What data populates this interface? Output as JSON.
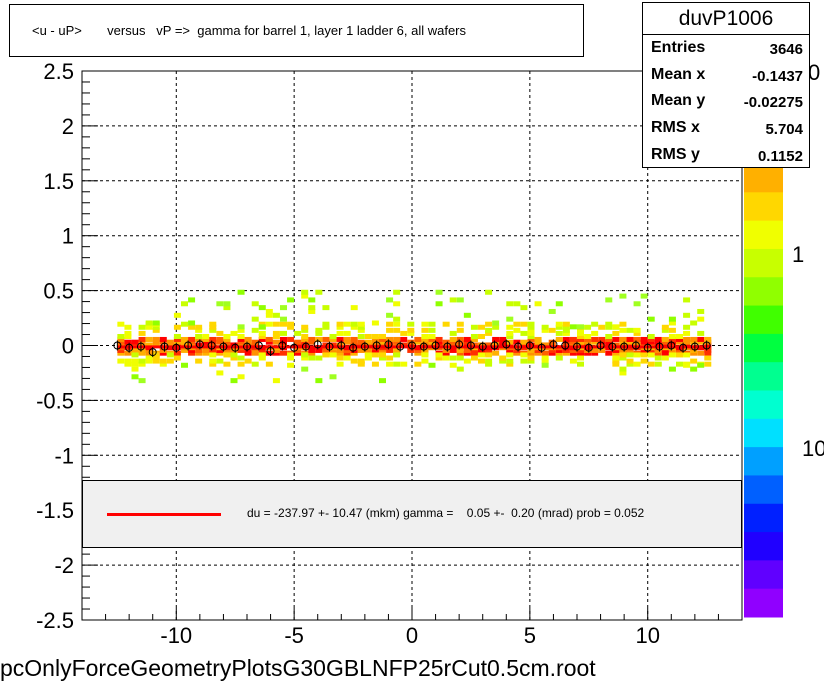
{
  "chart_data": {
    "type": "heatmap",
    "title": "<u - uP>       versus   vP =>  gamma for barrel 1, layer 1 ladder 6, all wafers",
    "xlim": [
      -14,
      14
    ],
    "ylim": [
      -2.5,
      2.5
    ],
    "x_ticks": [
      {
        "value": -10,
        "label": "-10"
      },
      {
        "value": -5,
        "label": "-5"
      },
      {
        "value": 0,
        "label": "0"
      },
      {
        "value": 5,
        "label": "5"
      },
      {
        "value": 10,
        "label": "10"
      }
    ],
    "y_ticks": [
      {
        "value": 2.5,
        "label": "2.5"
      },
      {
        "value": 2,
        "label": "2"
      },
      {
        "value": 1.5,
        "label": "1.5"
      },
      {
        "value": 1,
        "label": "1"
      },
      {
        "value": 0.5,
        "label": "0.5"
      },
      {
        "value": 0,
        "label": "0"
      },
      {
        "value": -0.5,
        "label": "-0.5"
      },
      {
        "value": -1,
        "label": "-1"
      },
      {
        "value": -1.5,
        "label": "-1.5"
      },
      {
        "value": -2,
        "label": "-2"
      },
      {
        "value": -2.5,
        "label": "-2.5"
      }
    ],
    "grid": true,
    "colorbar_labels": [
      {
        "text": "1"
      },
      {
        "text": "10"
      },
      {
        "text": "0"
      }
    ],
    "colors": {
      "fit_line": "#ff0000",
      "points": "#000000",
      "palette": [
        "#ffb000",
        "#ffd700",
        "#f0ff00",
        "#c8ff00",
        "#90ff00",
        "#40ff00",
        "#00ff40",
        "#00ff90",
        "#00ffd0",
        "#00e0ff",
        "#00a0ff",
        "#0060ff",
        "#0020ff",
        "#2000ff",
        "#6000ff",
        "#9000ff"
      ]
    },
    "heatmap_band": {
      "x_range": [
        -12.5,
        12.5
      ],
      "core_y": [
        -0.08,
        0.08
      ],
      "outer_y": [
        -0.32,
        0.5
      ]
    },
    "profile_points": {
      "x": [
        -12.5,
        -12,
        -11.5,
        -11,
        -10.5,
        -10,
        -9.5,
        -9,
        -8.5,
        -8,
        -7.5,
        -7,
        -6.5,
        -6,
        -5.5,
        -5,
        -4.5,
        -4,
        -3.5,
        -3,
        -2.5,
        -2,
        -1.5,
        -1,
        -0.5,
        0,
        0.5,
        1,
        1.5,
        2,
        2.5,
        3,
        3.5,
        4,
        4.5,
        5,
        5.5,
        6,
        6.5,
        7,
        7.5,
        8,
        8.5,
        9,
        9.5,
        10,
        10.5,
        11,
        11.5,
        12,
        12.5
      ],
      "y": [
        0.0,
        -0.02,
        -0.01,
        -0.06,
        -0.01,
        -0.02,
        0.0,
        0.01,
        0.0,
        -0.01,
        -0.02,
        -0.01,
        0.0,
        -0.05,
        0.0,
        -0.02,
        -0.01,
        0.01,
        -0.01,
        0.0,
        -0.02,
        -0.01,
        0.0,
        0.01,
        -0.01,
        0.0,
        -0.01,
        0.0,
        -0.01,
        0.01,
        0.0,
        -0.01,
        0.0,
        0.01,
        -0.01,
        0.0,
        -0.02,
        0.01,
        0.0,
        -0.01,
        -0.02,
        0.0,
        -0.01,
        -0.01,
        0.0,
        -0.02,
        -0.01,
        0.0,
        -0.02,
        -0.01,
        0.0
      ]
    },
    "fit_line": {
      "x": [
        -12.5,
        12.5
      ],
      "y": [
        -0.012,
        -0.012
      ]
    }
  },
  "stats": {
    "title": "duvP1006",
    "rows": [
      {
        "label": "Entries",
        "value": "3646"
      },
      {
        "label": "Mean x",
        "value": "-0.1437"
      },
      {
        "label": "Mean y",
        "value": "-0.02275"
      },
      {
        "label": "RMS x",
        "value": "5.704"
      },
      {
        "label": "RMS y",
        "value": "0.1152"
      }
    ]
  },
  "legend": {
    "text": "du = -237.97 +- 10.47 (mkm) gamma =    0.05 +-  0.20 (mrad) prob = 0.052"
  },
  "footer": {
    "filename": "pcOnlyForceGeometryPlotsG30GBLNFP25rCut0.5cm.root"
  }
}
